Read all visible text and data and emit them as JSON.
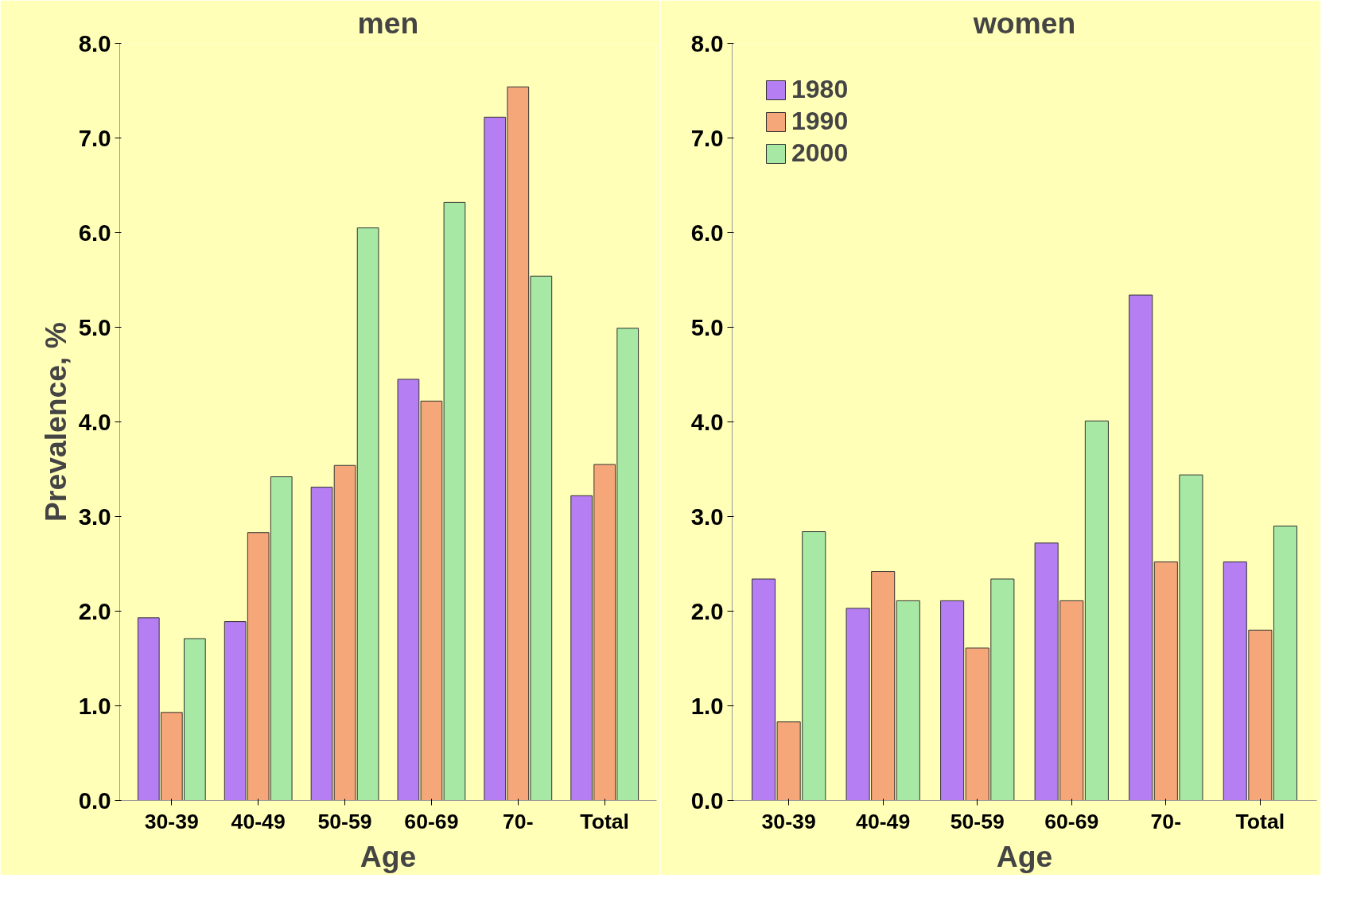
{
  "chart_data": [
    {
      "type": "bar",
      "title": "men",
      "xlabel": "Age",
      "ylabel": "Prevalence, %",
      "categories": [
        "30-39",
        "40-49",
        "50-59",
        "60-69",
        "70-",
        "Total"
      ],
      "ylim": [
        0,
        8
      ],
      "yticks": [
        {
          "value": 0,
          "label": "0.0"
        },
        {
          "value": 1,
          "label": "1.0"
        },
        {
          "value": 2,
          "label": "2.0"
        },
        {
          "value": 3,
          "label": "3.0"
        },
        {
          "value": 4,
          "label": "4.0"
        },
        {
          "value": 5,
          "label": "5.0"
        },
        {
          "value": 6,
          "label": "6.0"
        },
        {
          "value": 7,
          "label": "7.0"
        },
        {
          "value": 8,
          "label": "8.0"
        }
      ],
      "grid": false,
      "legend": false,
      "series": [
        {
          "color": "#b57ef2",
          "values": [
            1.93,
            1.89,
            3.31,
            4.45,
            7.22,
            3.22
          ]
        },
        {
          "color": "#f5a77a",
          "values": [
            0.93,
            2.83,
            3.54,
            4.22,
            7.54,
            3.55
          ]
        },
        {
          "color": "#a6e8a4",
          "values": [
            1.71,
            3.42,
            6.05,
            6.32,
            5.54,
            4.99
          ]
        }
      ]
    },
    {
      "type": "bar",
      "title": "women",
      "xlabel": "Age",
      "categories": [
        "30-39",
        "40-49",
        "50-59",
        "60-69",
        "70-",
        "Total"
      ],
      "ylim": [
        0,
        8
      ],
      "yticks": [
        {
          "value": 0,
          "label": "0.0"
        },
        {
          "value": 1,
          "label": "1.0"
        },
        {
          "value": 2,
          "label": "2.0"
        },
        {
          "value": 3,
          "label": "3.0"
        },
        {
          "value": 4,
          "label": "4.0"
        },
        {
          "value": 5,
          "label": "5.0"
        },
        {
          "value": 6,
          "label": "6.0"
        },
        {
          "value": 7,
          "label": "7.0"
        },
        {
          "value": 8,
          "label": "8.0"
        }
      ],
      "grid": false,
      "legend": "top left",
      "series": [
        {
          "name": "1980",
          "color": "#b57ef2",
          "values": [
            2.34,
            2.03,
            2.11,
            2.72,
            5.34,
            2.52
          ]
        },
        {
          "name": "1990",
          "color": "#f5a77a",
          "values": [
            0.83,
            2.42,
            1.61,
            2.11,
            2.52,
            1.8
          ]
        },
        {
          "name": "2000",
          "color": "#a6e8a4",
          "values": [
            2.84,
            2.11,
            2.34,
            4.01,
            3.44,
            2.9
          ]
        }
      ]
    }
  ]
}
